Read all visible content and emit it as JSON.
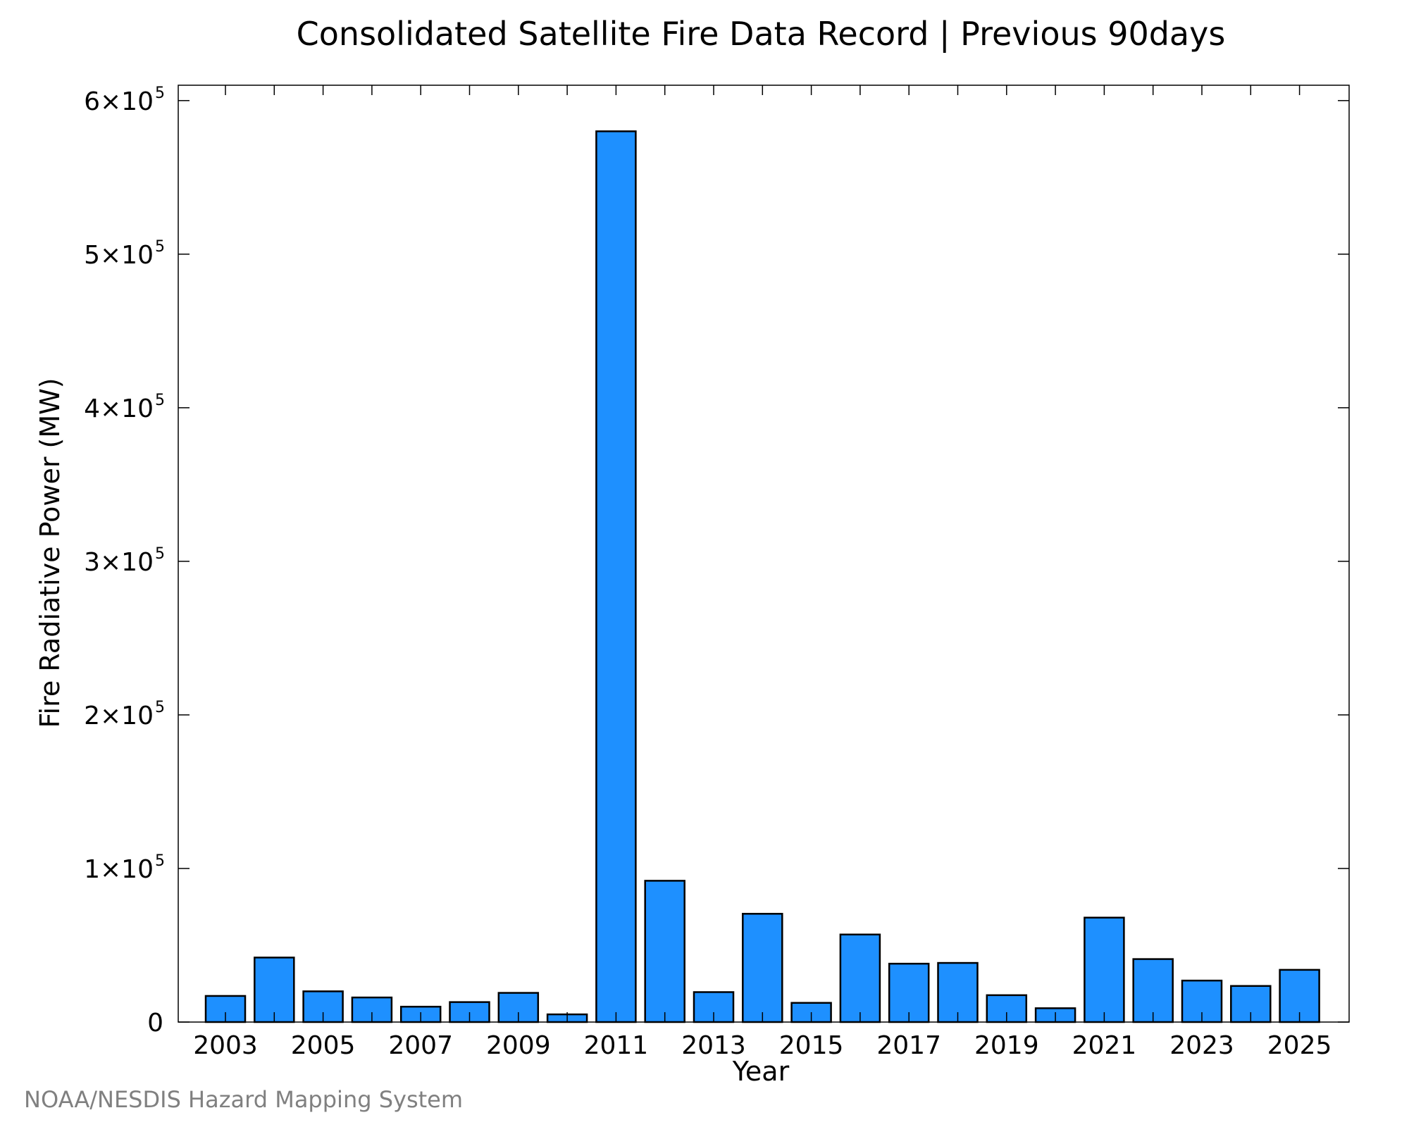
{
  "chart_data": {
    "type": "bar",
    "title": "Consolidated Satellite Fire Data Record | Previous 90days",
    "xlabel": "Year",
    "ylabel": "Fire Radiative Power (MW)",
    "ylim": [
      0,
      610000
    ],
    "categories": [
      "2003",
      "2004",
      "2005",
      "2006",
      "2007",
      "2008",
      "2009",
      "2010",
      "2011",
      "2012",
      "2013",
      "2014",
      "2015",
      "2016",
      "2017",
      "2018",
      "2019",
      "2020",
      "2021",
      "2022",
      "2023",
      "2024",
      "2025"
    ],
    "values": [
      17000,
      42000,
      20000,
      16000,
      10000,
      13000,
      19000,
      5000,
      580000,
      92000,
      19500,
      70500,
      12500,
      57000,
      38000,
      38500,
      17500,
      9000,
      68000,
      41000,
      27000,
      23500,
      34000
    ],
    "x_tick_labels": [
      "2003",
      "2005",
      "2007",
      "2009",
      "2011",
      "2013",
      "2015",
      "2017",
      "2019",
      "2021",
      "2023",
      "2025"
    ],
    "y_ticks": [
      {
        "value": 0,
        "mantissa": "0",
        "exponent": ""
      },
      {
        "value": 100000,
        "mantissa": "1×10",
        "exponent": "5"
      },
      {
        "value": 200000,
        "mantissa": "2×10",
        "exponent": "5"
      },
      {
        "value": 300000,
        "mantissa": "3×10",
        "exponent": "5"
      },
      {
        "value": 400000,
        "mantissa": "4×10",
        "exponent": "5"
      },
      {
        "value": 500000,
        "mantissa": "5×10",
        "exponent": "5"
      },
      {
        "value": 600000,
        "mantissa": "6×10",
        "exponent": "5"
      }
    ],
    "bar_color": "#1e90ff",
    "bar_edge_color": "#000000",
    "grid": false,
    "legend": "none"
  },
  "credit": "NOAA/NESDIS Hazard Mapping System"
}
